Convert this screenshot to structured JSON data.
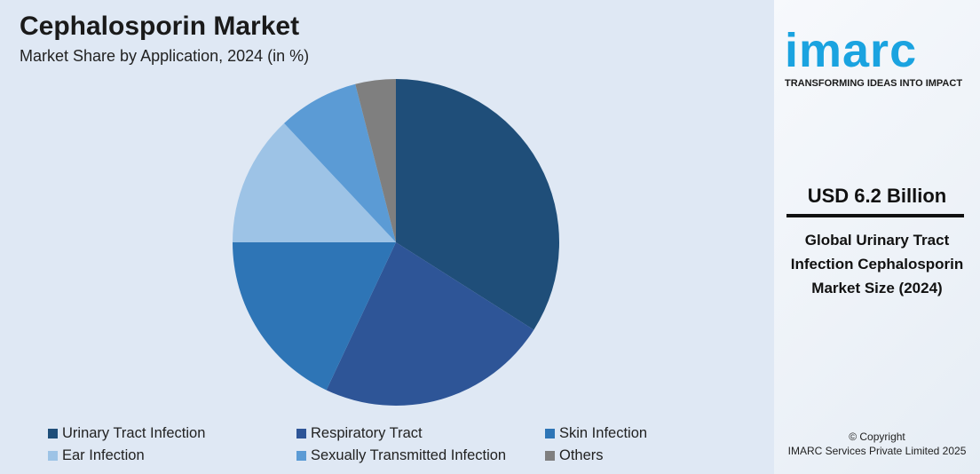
{
  "header": {
    "title": "Cephalosporin Market",
    "subtitle": "Market Share by Application, 2024 (in %)"
  },
  "brand": {
    "logo": "IMARC",
    "tagline": "TRANSFORMING IDEAS INTO IMPACT",
    "value": "USD 6.2 Billion",
    "description": "Global Urinary Tract Infection Cephalosporin Market Size (2024)",
    "copyright": "© Copyright",
    "company": "IMARC Services Private Limited 2025"
  },
  "chart_data": {
    "type": "pie",
    "title": "Cephalosporin Market",
    "subtitle": "Market Share by Application, 2024 (in %)",
    "legend_position": "bottom",
    "categories": [
      "Urinary Tract Infection",
      "Respiratory Tract",
      "Skin Infection",
      "Ear Infection",
      "Sexually Transmitted Infection",
      "Others"
    ],
    "values": [
      34,
      23,
      18,
      13,
      8,
      4
    ],
    "colors": [
      "#1f4e79",
      "#2e5597",
      "#2e75b6",
      "#9dc3e6",
      "#5b9bd5",
      "#7f7f7f"
    ]
  }
}
